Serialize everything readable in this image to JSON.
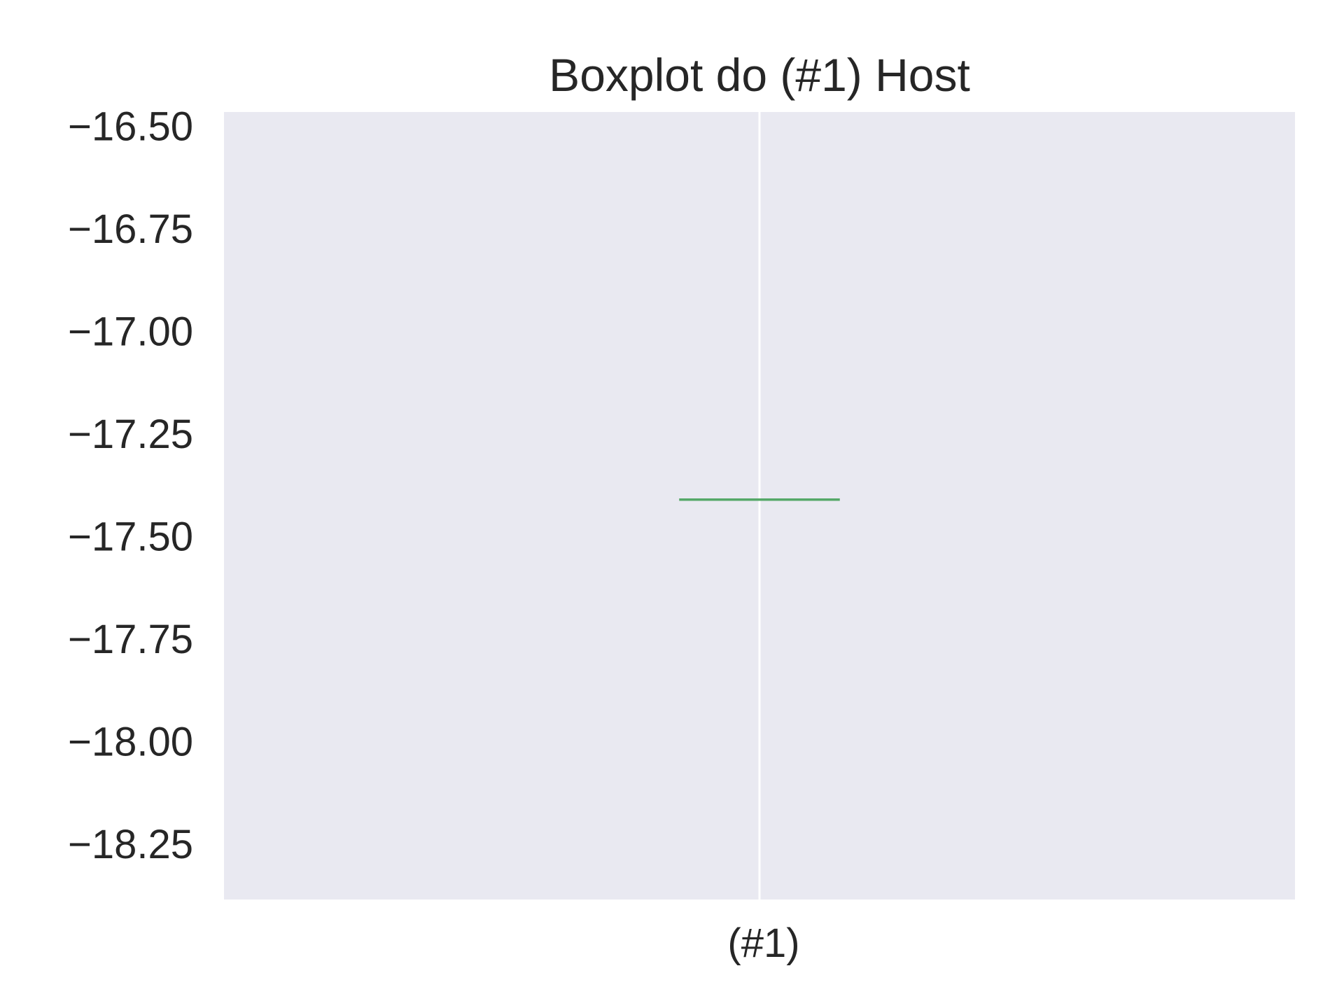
{
  "chart_data": {
    "type": "box",
    "title": "Boxplot do  (#1) Host",
    "xlabel": "",
    "ylabel": "",
    "categories": [
      "(#1)"
    ],
    "series": [
      {
        "category": "(#1)",
        "min": -17.41,
        "q1": -17.41,
        "median": -17.41,
        "q3": -17.41,
        "max": -17.41
      }
    ],
    "ylim": [
      -18.385,
      -16.465
    ],
    "yticks": [
      -16.5,
      -16.75,
      -17.0,
      -17.25,
      -17.5,
      -17.75,
      -18.0,
      -18.25
    ],
    "ytick_labels": [
      "−16.50",
      "−16.75",
      "−17.00",
      "−17.25",
      "−17.50",
      "−17.75",
      "−18.00",
      "−18.25"
    ],
    "grid": true,
    "colors": {
      "plot_background": "#e9e9f1",
      "grid": "#ffffff",
      "median": "#55a868",
      "text": "#262626"
    }
  }
}
